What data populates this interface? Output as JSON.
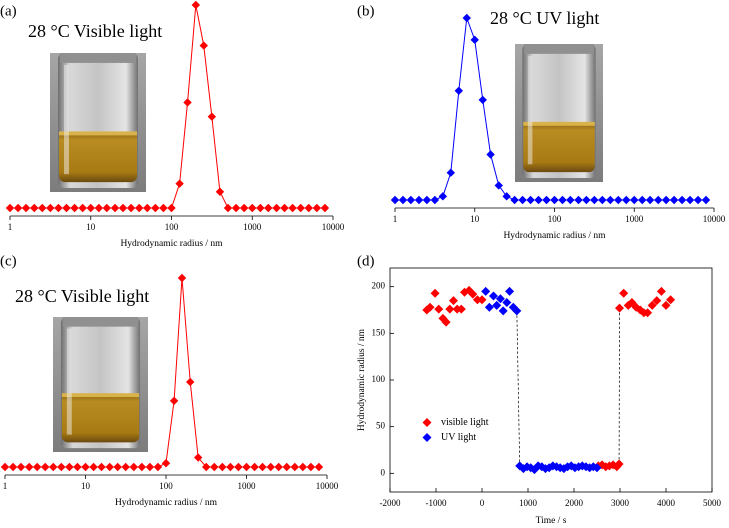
{
  "chart_data": [
    {
      "type": "line",
      "panel": "(a)",
      "annotation": "28 °C Visible light",
      "xlabel": "Hydrodynamic radius / nm",
      "color": "#ff0000",
      "xscale": "log",
      "xlim": [
        1,
        10000
      ],
      "xticks": [
        1,
        10,
        100,
        1000,
        10000
      ],
      "ylim": [
        0,
        100
      ],
      "x": [
        1,
        1.26,
        1.58,
        2,
        2.51,
        3.16,
        3.98,
        5.01,
        6.31,
        7.94,
        10,
        12.6,
        15.8,
        20,
        25.1,
        31.6,
        39.8,
        50.1,
        63.1,
        79.4,
        100,
        126,
        158,
        200,
        251,
        316,
        398,
        501,
        631,
        794,
        1000,
        1260,
        1580,
        2000,
        2510,
        3160,
        3980,
        5010,
        6310,
        7940
      ],
      "values": [
        0,
        0,
        0,
        0,
        0,
        0,
        0,
        0,
        0,
        0,
        0,
        0,
        0,
        0,
        0,
        0,
        0,
        0,
        0,
        0,
        0,
        12,
        52,
        100,
        80,
        45,
        8,
        0,
        0,
        0,
        0,
        0,
        0,
        0,
        0,
        0,
        0,
        0,
        0,
        0
      ]
    },
    {
      "type": "line",
      "panel": "(b)",
      "annotation": "28 °C UV light",
      "xlabel": "Hydrodynamic radius / nm",
      "color": "#0000ff",
      "xscale": "log",
      "xlim": [
        1,
        10000
      ],
      "xticks": [
        1,
        10,
        100,
        1000,
        10000
      ],
      "ylim": [
        0,
        100
      ],
      "x": [
        1,
        1.26,
        1.58,
        2,
        2.51,
        3.16,
        3.98,
        5.01,
        6.31,
        7.94,
        10,
        12.6,
        15.8,
        20,
        25.1,
        31.6,
        39.8,
        50.1,
        63.1,
        79.4,
        100,
        126,
        158,
        200,
        251,
        316,
        398,
        501,
        631,
        794,
        1000,
        1260,
        1580,
        2000,
        2510,
        3160,
        3980,
        5010,
        6310,
        7940
      ],
      "values": [
        0,
        0,
        0,
        0,
        0,
        0,
        2,
        15,
        60,
        100,
        88,
        55,
        25,
        8,
        2,
        0,
        0,
        0,
        0,
        0,
        0,
        0,
        0,
        0,
        0,
        0,
        0,
        0,
        0,
        0,
        0,
        0,
        0,
        0,
        0,
        0,
        0,
        0,
        0,
        0
      ]
    },
    {
      "type": "line",
      "panel": "(c)",
      "annotation": "28 °C Visible light",
      "xlabel": "Hydrodynamic radius / nm",
      "color": "#ff0000",
      "xscale": "log",
      "xlim": [
        1,
        10000
      ],
      "xticks": [
        1,
        10,
        100,
        1000,
        10000
      ],
      "ylim": [
        0,
        100
      ],
      "x": [
        1,
        1.26,
        1.58,
        2,
        2.51,
        3.16,
        3.98,
        5.01,
        6.31,
        7.94,
        10,
        12.6,
        15.8,
        20,
        25.1,
        31.6,
        39.8,
        50.1,
        63.1,
        79.4,
        100,
        126,
        158,
        200,
        251,
        316,
        398,
        501,
        631,
        794,
        1000,
        1260,
        1580,
        2000,
        2510,
        3160,
        3980,
        5010,
        6310,
        7940
      ],
      "values": [
        0,
        0,
        0,
        0,
        0,
        0,
        0,
        0,
        0,
        0,
        0,
        0,
        0,
        0,
        0,
        0,
        0,
        0,
        0,
        0,
        2,
        35,
        100,
        45,
        5,
        0,
        0,
        0,
        0,
        0,
        0,
        0,
        0,
        0,
        0,
        0,
        0,
        0,
        0,
        0
      ]
    },
    {
      "type": "scatter",
      "panel": "(d)",
      "xlabel": "Time / s",
      "ylabel": "Hydrodynamic radius / nm",
      "xlim": [
        -2000,
        5000
      ],
      "xticks": [
        -2000,
        -1000,
        0,
        1000,
        2000,
        3000,
        4000,
        5000
      ],
      "ylim": [
        -20,
        220
      ],
      "yticks": [
        0,
        50,
        100,
        150,
        200
      ],
      "legend": "center left",
      "series": [
        {
          "name": "visible light",
          "color": "#ff0000",
          "x": [
            -1200,
            -1130,
            -1020,
            -940,
            -850,
            -780,
            -700,
            -620,
            -540,
            -450,
            -380,
            -280,
            -200,
            -100,
            0,
            2530,
            2610,
            2690,
            2770,
            2850,
            2930,
            2980,
            2990,
            3080,
            3180,
            3260,
            3350,
            3440,
            3520,
            3600,
            3700,
            3800,
            3900,
            4000,
            4100
          ],
          "values": [
            175,
            178,
            193,
            176,
            166,
            162,
            176,
            185,
            176,
            176,
            194,
            196,
            192,
            186,
            186,
            8,
            9,
            7,
            8,
            9,
            7,
            10,
            177,
            193,
            180,
            183,
            178,
            175,
            172,
            172,
            180,
            185,
            195,
            180,
            186
          ]
        },
        {
          "name": "UV light",
          "color": "#0000ff",
          "x": [
            80,
            160,
            250,
            320,
            400,
            460,
            540,
            600,
            680,
            757,
            820,
            900,
            980,
            1060,
            1140,
            1220,
            1300,
            1380,
            1460,
            1540,
            1620,
            1700,
            1780,
            1860,
            1940,
            2020,
            2100,
            2180,
            2260,
            2340,
            2420,
            2500
          ],
          "values": [
            195,
            178,
            190,
            180,
            187,
            174,
            183,
            195,
            178,
            174,
            8,
            5,
            7,
            6,
            4,
            8,
            7,
            5,
            6,
            8,
            7,
            6,
            5,
            7,
            8,
            6,
            7,
            8,
            7,
            6,
            7,
            6
          ]
        }
      ]
    }
  ]
}
